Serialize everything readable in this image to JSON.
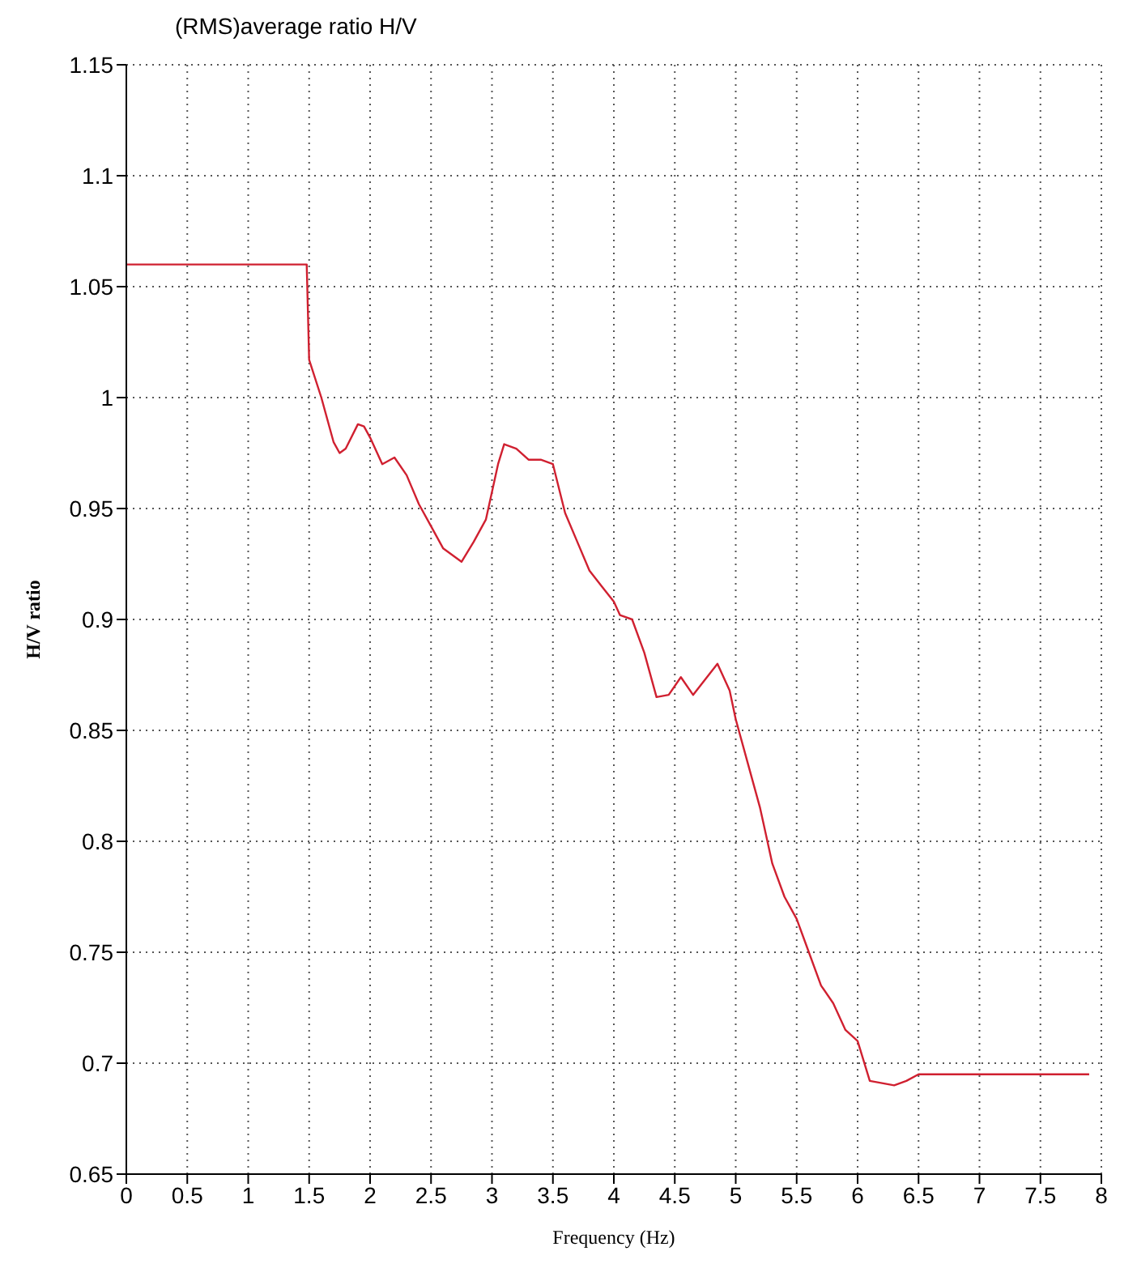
{
  "chart_data": {
    "type": "line",
    "title": "(RMS)average ratio H/V",
    "xlabel": "Frequency (Hz)",
    "ylabel": "H/V ratio",
    "xlim": [
      0,
      8
    ],
    "xticks": [
      0,
      0.5,
      1,
      1.5,
      2,
      2.5,
      3,
      3.5,
      4,
      4.5,
      5,
      5.5,
      6,
      6.5,
      7,
      7.5,
      8
    ],
    "ylim": [
      0.65,
      1.15
    ],
    "yticks": [
      0.65,
      0.7,
      0.75,
      0.8,
      0.85,
      0.9,
      0.95,
      1,
      1.05,
      1.1,
      1.15
    ],
    "grid": true,
    "series": [
      {
        "color": "#d02030",
        "x": [
          0,
          1.48,
          1.5,
          1.6,
          1.7,
          1.75,
          1.8,
          1.9,
          1.95,
          2.0,
          2.1,
          2.2,
          2.3,
          2.4,
          2.5,
          2.6,
          2.75,
          2.85,
          2.95,
          3.05,
          3.1,
          3.2,
          3.3,
          3.4,
          3.5,
          3.6,
          3.7,
          3.8,
          3.9,
          4.0,
          4.05,
          4.15,
          4.25,
          4.35,
          4.45,
          4.55,
          4.65,
          4.75,
          4.85,
          4.95,
          5.0,
          5.1,
          5.2,
          5.3,
          5.4,
          5.5,
          5.6,
          5.7,
          5.8,
          5.9,
          6.0,
          6.1,
          6.2,
          6.3,
          6.4,
          6.5,
          7.9
        ],
        "values": [
          1.06,
          1.06,
          1.017,
          1.0,
          0.98,
          0.975,
          0.977,
          0.988,
          0.987,
          0.982,
          0.97,
          0.973,
          0.965,
          0.952,
          0.942,
          0.932,
          0.926,
          0.935,
          0.945,
          0.97,
          0.979,
          0.977,
          0.972,
          0.972,
          0.97,
          0.948,
          0.935,
          0.922,
          0.915,
          0.908,
          0.902,
          0.9,
          0.885,
          0.865,
          0.866,
          0.874,
          0.866,
          0.873,
          0.88,
          0.868,
          0.855,
          0.835,
          0.815,
          0.79,
          0.775,
          0.765,
          0.75,
          0.735,
          0.727,
          0.715,
          0.71,
          0.692,
          0.691,
          0.69,
          0.692,
          0.695,
          0.695
        ]
      }
    ]
  }
}
